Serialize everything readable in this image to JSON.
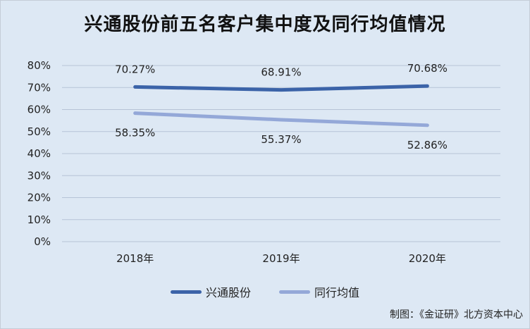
{
  "title": "兴通股份前五名客户集中度及同行均值情况",
  "credit": "制图：《金证研》北方资本中心",
  "colors": {
    "series1": "#3b63a8",
    "series2": "#94a8d8",
    "grid": "#b6c3d6",
    "text": "#222222"
  },
  "chart_data": {
    "type": "line",
    "title": "兴通股份前五名客户集中度及同行均值情况",
    "categories": [
      "2018年",
      "2019年",
      "2020年"
    ],
    "series": [
      {
        "name": "兴通股份",
        "values": [
          70.27,
          68.91,
          70.68
        ],
        "labels": [
          "70.27%",
          "68.91%",
          "70.68%"
        ]
      },
      {
        "name": "同行均值",
        "values": [
          58.35,
          55.37,
          52.86
        ],
        "labels": [
          "58.35%",
          "55.37%",
          "52.86%"
        ]
      }
    ],
    "ylim": [
      0,
      80
    ],
    "yticks": [
      "0%",
      "10%",
      "20%",
      "30%",
      "40%",
      "50%",
      "60%",
      "70%",
      "80%"
    ],
    "grid": true,
    "legend_position": "bottom"
  }
}
